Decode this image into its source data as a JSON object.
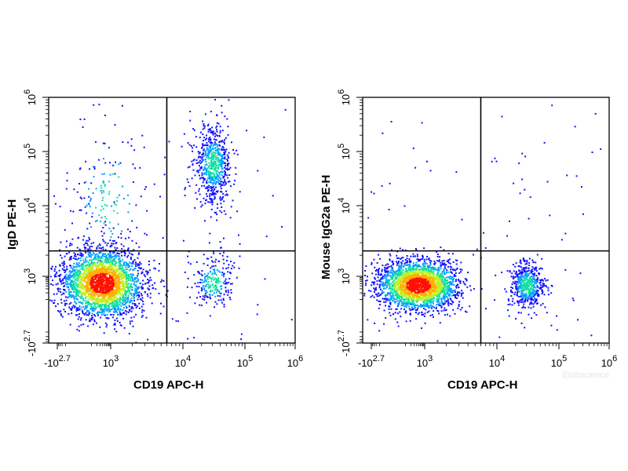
{
  "chart_data": [
    {
      "type": "scatter",
      "xlabel": "CD19 APC-H",
      "ylabel": "IgD PE-H",
      "x_ticks": [
        {
          "base": "-10",
          "exp": "2.7"
        },
        {
          "base": "10",
          "exp": "3"
        },
        {
          "base": "10",
          "exp": "4"
        },
        {
          "base": "10",
          "exp": "5"
        },
        {
          "base": "10",
          "exp": "6"
        }
      ],
      "y_ticks": [
        {
          "base": "-10",
          "exp": "2.7"
        },
        {
          "base": "10",
          "exp": "3"
        },
        {
          "base": "10",
          "exp": "4"
        },
        {
          "base": "10",
          "exp": "5"
        },
        {
          "base": "10",
          "exp": "6"
        }
      ],
      "scale": "biexponential",
      "quadrant_gate": {
        "x": 6000,
        "y": 2300
      },
      "populations": [
        {
          "name": "CD19- IgD-",
          "center": [
            350,
            550
          ],
          "density": "high"
        },
        {
          "name": "CD19+ IgD+",
          "center": [
            30000,
            60000
          ],
          "density": "medium"
        },
        {
          "name": "CD19+ IgD-",
          "center": [
            30000,
            600
          ],
          "density": "low"
        },
        {
          "name": "CD19- IgD+",
          "center": [
            700,
            8000
          ],
          "density": "low"
        }
      ]
    },
    {
      "type": "scatter",
      "xlabel": "CD19 APC-H",
      "ylabel": "Mouse IgG2a PE-H",
      "x_ticks": [
        {
          "base": "-10",
          "exp": "2.7"
        },
        {
          "base": "10",
          "exp": "3"
        },
        {
          "base": "10",
          "exp": "4"
        },
        {
          "base": "10",
          "exp": "5"
        },
        {
          "base": "10",
          "exp": "6"
        }
      ],
      "y_ticks": [
        {
          "base": "-10",
          "exp": "2.7"
        },
        {
          "base": "10",
          "exp": "3"
        },
        {
          "base": "10",
          "exp": "4"
        },
        {
          "base": "10",
          "exp": "5"
        },
        {
          "base": "10",
          "exp": "6"
        }
      ],
      "scale": "biexponential",
      "quadrant_gate": {
        "x": 6000,
        "y": 2300
      },
      "populations": [
        {
          "name": "CD19- isotype",
          "center": [
            450,
            450
          ],
          "density": "high"
        },
        {
          "name": "CD19+ isotype",
          "center": [
            30000,
            450
          ],
          "density": "medium"
        }
      ]
    }
  ],
  "watermark": "Elabscience",
  "colors": {
    "density_low": "#1010ff",
    "density_mid1": "#00a0ff",
    "density_mid2": "#10e0a0",
    "density_mid3": "#c0f020",
    "density_mid4": "#ffb000",
    "density_high": "#ff1000"
  }
}
